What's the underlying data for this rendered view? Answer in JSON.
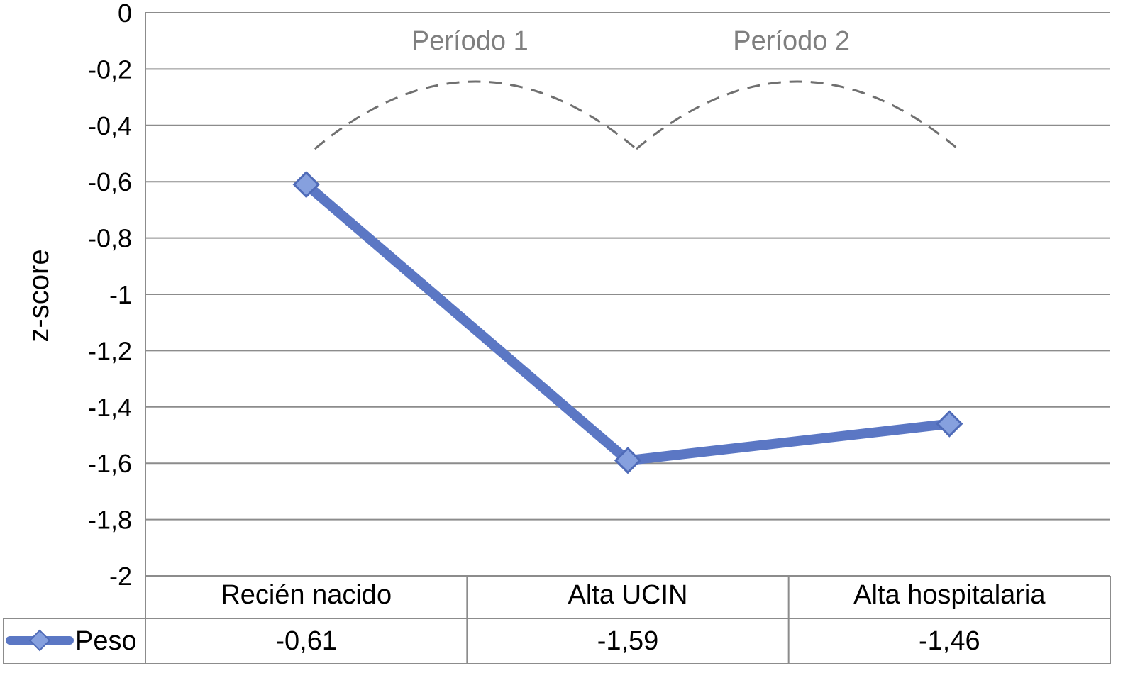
{
  "chart_data": {
    "type": "line",
    "ylabel": "z-score",
    "ylim": [
      -2,
      0
    ],
    "y_ticks": [
      "0",
      "-0,2",
      "-0,4",
      "-0,6",
      "-0,8",
      "-1",
      "-1,2",
      "-1,4",
      "-1,6",
      "-1,8",
      "-2"
    ],
    "categories": [
      "Recién nacido",
      "Alta UCIN",
      "Alta hospitalaria"
    ],
    "series": [
      {
        "name": "Peso",
        "values": [
          -0.61,
          -1.59,
          -1.46
        ],
        "labels": [
          "-0,61",
          "-1,59",
          "-1,46"
        ],
        "color": "#5b77c4",
        "marker": "diamond"
      }
    ],
    "annotations": [
      {
        "text": "Período 1",
        "from": "Recién nacido",
        "to": "Alta UCIN"
      },
      {
        "text": "Período 2",
        "from": "Alta UCIN",
        "to": "Alta hospitalaria"
      }
    ],
    "grid": true,
    "legend": "data-table-left",
    "data_table": true
  }
}
